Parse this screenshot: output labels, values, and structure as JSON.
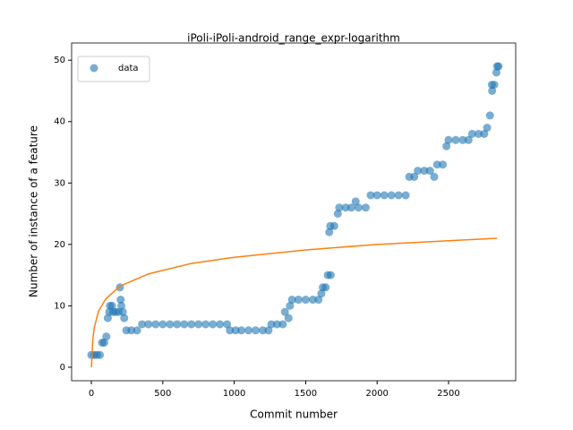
{
  "chart_data": {
    "type": "scatter",
    "title": "iPoli-iPoli-android_range_expr-logarithm",
    "xlabel": "Commit number",
    "ylabel": "Number of instance of a feature",
    "xlim": [
      -138,
      2970
    ],
    "ylim": [
      -2.2,
      52.8
    ],
    "xticks": [
      0,
      500,
      1000,
      1500,
      2000,
      2500
    ],
    "yticks": [
      0,
      10,
      20,
      30,
      40,
      50
    ],
    "legend": "upper left",
    "series": [
      {
        "name": "data",
        "color": "#1f77b4",
        "x": [
          0,
          20,
          40,
          60,
          75,
          90,
          105,
          115,
          125,
          130,
          145,
          150,
          170,
          190,
          200,
          205,
          210,
          220,
          230,
          245,
          280,
          320,
          355,
          400,
          450,
          500,
          550,
          600,
          650,
          700,
          750,
          800,
          850,
          900,
          950,
          970,
          1010,
          1050,
          1100,
          1150,
          1200,
          1240,
          1260,
          1300,
          1340,
          1355,
          1380,
          1390,
          1405,
          1450,
          1500,
          1550,
          1590,
          1610,
          1620,
          1640,
          1655,
          1675,
          1665,
          1672,
          1700,
          1725,
          1735,
          1780,
          1820,
          1850,
          1870,
          1920,
          1955,
          2000,
          2050,
          2100,
          2150,
          2200,
          2225,
          2260,
          2285,
          2330,
          2370,
          2400,
          2420,
          2460,
          2485,
          2500,
          2550,
          2600,
          2640,
          2665,
          2710,
          2750,
          2770,
          2790,
          2803,
          2805,
          2820,
          2835,
          2840,
          2850
        ],
        "values": [
          2,
          2,
          2,
          2,
          4,
          4,
          5,
          8,
          9,
          10,
          10,
          9,
          9,
          9,
          13,
          11,
          10,
          9,
          8,
          6,
          6,
          6,
          7,
          7,
          7,
          7,
          7,
          7,
          7,
          7,
          7,
          7,
          7,
          7,
          7,
          6,
          6,
          6,
          6,
          6,
          6,
          6,
          7,
          7,
          7,
          9,
          8,
          10,
          11,
          11,
          11,
          11,
          11,
          12,
          13,
          13,
          15,
          15,
          22,
          23,
          23,
          25,
          26,
          26,
          26,
          27,
          26,
          26,
          28,
          28,
          28,
          28,
          28,
          28,
          31,
          31,
          32,
          32,
          32,
          31,
          33,
          33,
          36,
          37,
          37,
          37,
          37,
          38,
          38,
          38,
          39,
          41,
          46,
          45,
          46,
          48,
          49,
          49
        ]
      },
      {
        "color": "#ff7f0e",
        "x": [
          1,
          5,
          10,
          20,
          50,
          100,
          200,
          400,
          700,
          1000,
          1500,
          2000,
          2500,
          2840
        ],
        "values": [
          0,
          2.3,
          4.4,
          6.4,
          9.1,
          11.1,
          13.2,
          15.2,
          16.9,
          17.9,
          19.1,
          20.0,
          20.6,
          21.0
        ]
      }
    ]
  }
}
